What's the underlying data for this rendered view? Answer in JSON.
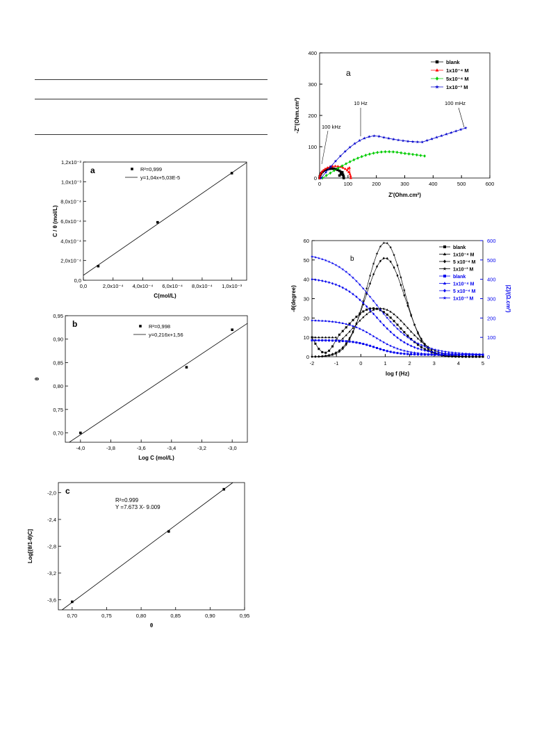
{
  "chart_data": [
    {
      "id": "a",
      "type": "scatter",
      "panel_label": "a",
      "xlabel": "C(mol/L)",
      "ylabel": "C / θ (mol/L)",
      "xlim": [
        0,
        0.0011
      ],
      "ylim": [
        0,
        0.0012
      ],
      "x_ticks": [
        "0,0",
        "2,0x10⁻⁴",
        "4,0x10⁻⁴",
        "6,0x10⁻⁴",
        "8,0x10⁻⁴",
        "1,0x10⁻³"
      ],
      "y_ticks": [
        "0,0",
        "2,0x10⁻⁴",
        "4,0x10⁻⁴",
        "6,0x10⁻⁴",
        "8,0x10⁻⁴",
        "1,0x10⁻³",
        "1,2x10⁻³"
      ],
      "series": [
        {
          "x": [
            0.0001,
            0.0005,
            0.001
          ],
          "y": [
            0.000143,
            0.000588,
            0.001087
          ]
        }
      ],
      "fit": {
        "slope": 1.04,
        "intercept": 5.03e-05
      },
      "legend": [
        "R²=0,999",
        "y=1,04x+5,03E-5"
      ]
    },
    {
      "id": "b",
      "type": "scatter",
      "panel_label": "b",
      "xlabel": "Log C (mol/L)",
      "ylabel": "θ",
      "xlim": [
        -4.1,
        -2.9
      ],
      "ylim": [
        0.68,
        0.95
      ],
      "x_ticks": [
        "-4,0",
        "-3,8",
        "-3,6",
        "-3,4",
        "-3,2",
        "-3,0"
      ],
      "y_ticks": [
        "0,70",
        "0,75",
        "0,80",
        "0,85",
        "0,90",
        "0,95"
      ],
      "series": [
        {
          "x": [
            -4.0,
            -3.301,
            -3.0
          ],
          "y": [
            0.7,
            0.84,
            0.92
          ]
        }
      ],
      "fit": {
        "slope": 0.216,
        "intercept": 1.56
      },
      "legend": [
        "R²=0,998",
        "y=0,216x+1,56"
      ]
    },
    {
      "id": "c",
      "type": "scatter",
      "panel_label": "c",
      "xlabel": "θ",
      "ylabel": "Log[(θ/1-θ)C]",
      "xlim": [
        0.68,
        0.95
      ],
      "ylim": [
        -3.75,
        -1.85
      ],
      "x_ticks": [
        "0,70",
        "0,75",
        "0,80",
        "0,85",
        "0,90",
        "0,95"
      ],
      "y_ticks": [
        "-3,6",
        "-3,2",
        "-2,8",
        "-2,4",
        "-2,0"
      ],
      "series": [
        {
          "x": [
            0.7,
            0.84,
            0.92
          ],
          "y": [
            -3.63,
            -2.58,
            -1.95
          ]
        }
      ],
      "fit": {
        "slope": 7.673,
        "intercept": -9.009
      },
      "legend": [
        "R²=0.999",
        "Y =7.673 X- 9.009"
      ]
    },
    {
      "id": "nyquist",
      "type": "line",
      "panel_label": "a",
      "xlabel": "Z'(Ohm.cm²)",
      "ylabel": "-Z''(Ohm.cm²)",
      "xlim": [
        0,
        600
      ],
      "ylim": [
        0,
        400
      ],
      "annotations": [
        "100 kHz",
        "10 Hz",
        "100 mHz"
      ],
      "series": [
        {
          "name": "blank",
          "color": "#000000",
          "marker": "square"
        },
        {
          "name": "1x10⁻⁴ M",
          "color": "#ff0000",
          "marker": "triangle"
        },
        {
          "name": "5x10⁻⁴ M",
          "color": "#00cc00",
          "marker": "diamond"
        },
        {
          "name": "1x10⁻³ M",
          "color": "#0000cc",
          "marker": "star"
        }
      ]
    },
    {
      "id": "bode",
      "type": "line",
      "panel_label": "b",
      "xlabel": "log f (Hz)",
      "ylabel": "-θ(degree)",
      "y2label": "|Z|/(Ω.cm²)",
      "xlim": [
        -2,
        5
      ],
      "ylim": [
        0,
        60
      ],
      "y2lim": [
        0,
        600
      ],
      "series": [
        {
          "name": "blank",
          "color": "#000000",
          "axis": "left",
          "marker": "square"
        },
        {
          "name": "1x10⁻⁴ M",
          "color": "#000000",
          "axis": "left",
          "marker": "triangle"
        },
        {
          "name": "5 x10⁻⁴ M",
          "color": "#000000",
          "axis": "left",
          "marker": "diamond"
        },
        {
          "name": "1x10⁻³ M",
          "color": "#000000",
          "axis": "left",
          "marker": "star"
        },
        {
          "name": "blank",
          "color": "#0000ee",
          "axis": "right",
          "marker": "square"
        },
        {
          "name": "1x10⁻⁴ M",
          "color": "#0000ee",
          "axis": "right",
          "marker": "triangle"
        },
        {
          "name": "5 x10⁻⁴ M",
          "color": "#0000ee",
          "axis": "right",
          "marker": "diamond"
        },
        {
          "name": "1x10⁻³ M",
          "color": "#0000ee",
          "axis": "right",
          "marker": "star"
        }
      ]
    }
  ]
}
